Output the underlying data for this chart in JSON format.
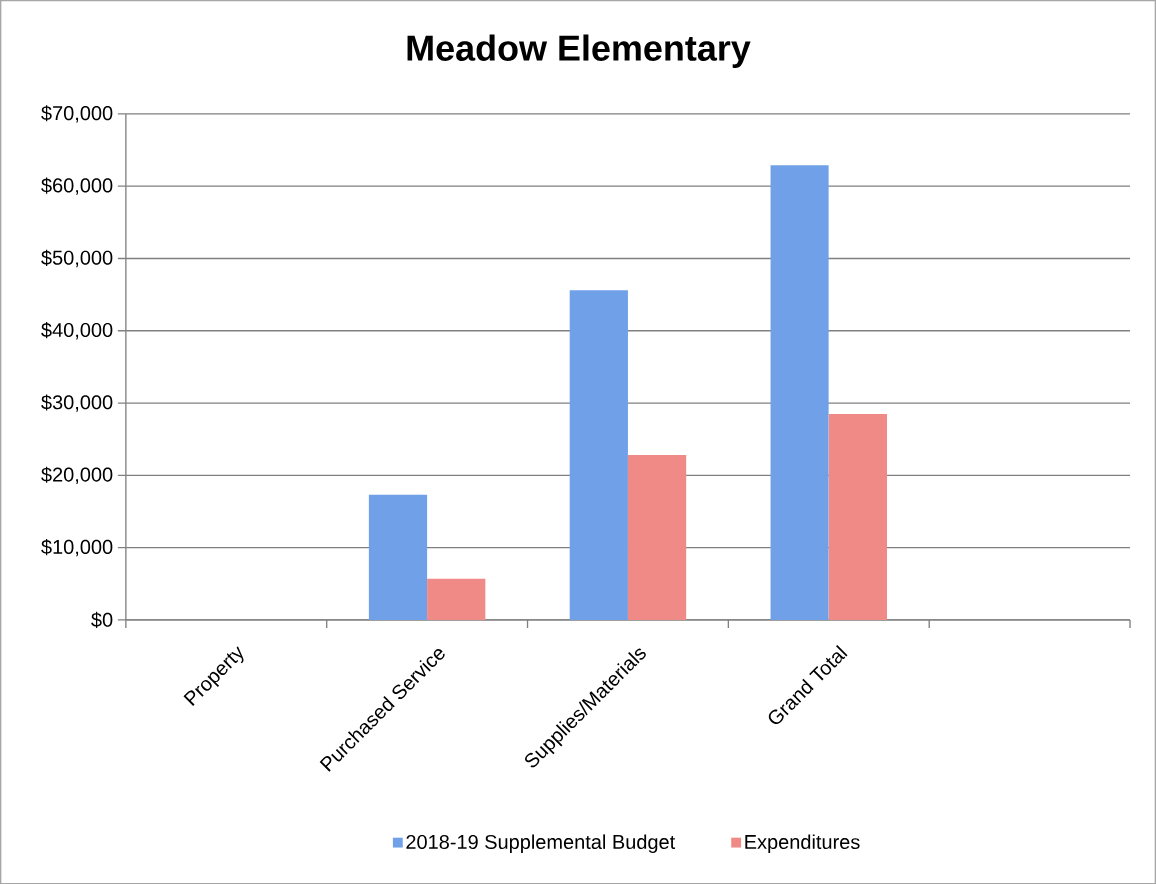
{
  "chart_data": {
    "type": "bar",
    "title": "Meadow Elementary",
    "categories": [
      "Property",
      "Purchased Service",
      "Supplies/Materials",
      "Grand Total",
      null
    ],
    "series": [
      {
        "name": "2018-19 Supplemental Budget",
        "color": "#6fa0e8",
        "values": [
          0,
          17300,
          45600,
          62900,
          null
        ]
      },
      {
        "name": "Expenditures",
        "color": "#f08a86",
        "values": [
          0,
          5700,
          22800,
          28500,
          null
        ]
      }
    ],
    "ylim": [
      0,
      70000
    ],
    "yticks": [
      {
        "value": 0,
        "label": "$0"
      },
      {
        "value": 10000,
        "label": "$10,000"
      },
      {
        "value": 20000,
        "label": "$20,000"
      },
      {
        "value": 30000,
        "label": "$30,000"
      },
      {
        "value": 40000,
        "label": "$40,000"
      },
      {
        "value": 50000,
        "label": "$50,000"
      },
      {
        "value": 60000,
        "label": "$60,000"
      },
      {
        "value": 70000,
        "label": "$70,000"
      }
    ],
    "grid": "y",
    "legend": "bottom"
  }
}
